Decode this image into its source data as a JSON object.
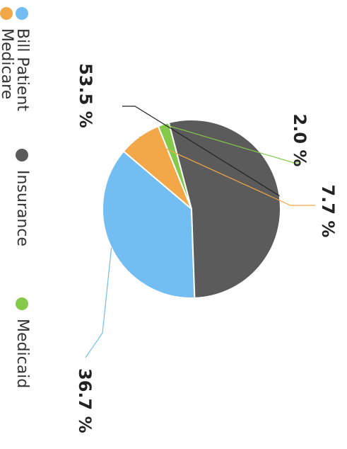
{
  "chart_data": {
    "type": "pie",
    "title": "",
    "orientation": "rotated-90-clockwise",
    "slices": [
      {
        "name": "Bill Patient",
        "value": 36.7,
        "label": "36.7 %",
        "color": "#72bdf2"
      },
      {
        "name": "Medicare",
        "value": 7.7,
        "label": "7.7 %",
        "color": "#f2a748"
      },
      {
        "name": "Medicaid",
        "value": 2.0,
        "label": "2.0 %",
        "color": "#84c94a"
      },
      {
        "name": "Insurance",
        "value": 53.5,
        "label": "53.5 %",
        "color": "#5b5b5b"
      }
    ],
    "legend": {
      "placement": "left",
      "items": [
        {
          "name": "Bill Patient",
          "color": "#72bdf2"
        },
        {
          "name": "Insurance",
          "color": "#5b5b5b"
        },
        {
          "name": "Medicaid",
          "color": "#84c94a"
        },
        {
          "name": "Medicare",
          "color": "#f2a748"
        }
      ]
    }
  }
}
